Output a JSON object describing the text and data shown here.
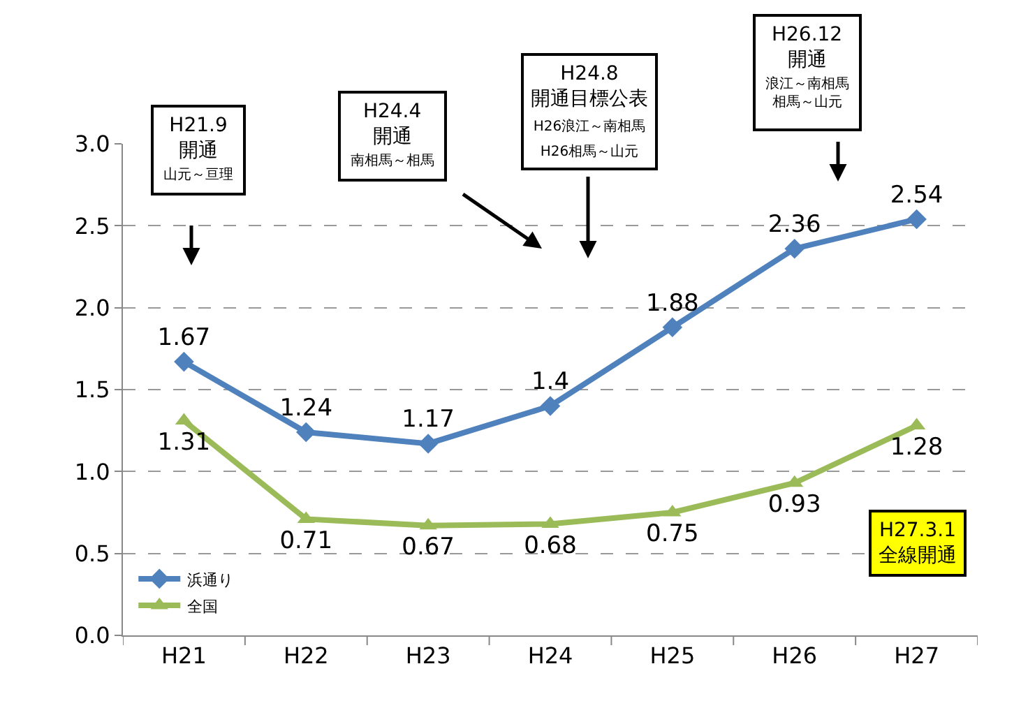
{
  "chart_data": {
    "type": "line",
    "categories": [
      "H21",
      "H22",
      "H23",
      "H24",
      "H25",
      "H26",
      "H27"
    ],
    "series": [
      {
        "name": "浜通り",
        "color": "#4f81bd",
        "marker": "diamond",
        "values": [
          1.67,
          1.24,
          1.17,
          1.4,
          1.88,
          2.36,
          2.54
        ]
      },
      {
        "name": "全国",
        "color": "#9bbb59",
        "marker": "triangle",
        "values": [
          1.31,
          0.71,
          0.67,
          0.68,
          0.75,
          0.93,
          1.28
        ]
      }
    ],
    "ylim": [
      0,
      3
    ],
    "yticks": [
      {
        "value": 0,
        "label": "0.0"
      },
      {
        "value": 0.5,
        "label": "0.5"
      },
      {
        "value": 1,
        "label": "1.0"
      },
      {
        "value": 1.5,
        "label": "1.5"
      },
      {
        "value": 2,
        "label": "2.0"
      },
      {
        "value": 2.5,
        "label": "2.5"
      },
      {
        "value": 3,
        "label": "3.0"
      }
    ],
    "grid": "y",
    "legend": "bottom left",
    "data_labels": true,
    "line_style": "solid",
    "annotations": [
      "H21.9\n開通",
      "山元～亘理",
      "H24.4\n開通",
      "南相馬～相馬",
      "H24.8\n開通目標公表\nH26浪江～南相馬\nH26相馬～山元",
      "H26.12\n開通",
      "浪江～南相馬",
      "相馬～山元",
      "H27.3.1\n全線開通"
    ]
  }
}
